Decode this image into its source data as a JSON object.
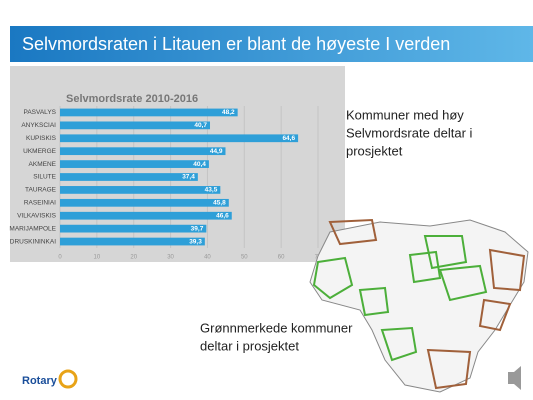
{
  "slide": {
    "title": "Selvmordsraten i Litauen er blant de høyeste I verden",
    "note_top": [
      "Kommuner med høy",
      "Selvmordsrate deltar i",
      "prosjektet"
    ],
    "note_bottom": [
      "Grønnmerkede kommuner",
      "deltar i prosjektet"
    ],
    "logo": "Rotary"
  },
  "chart_data": {
    "type": "hbar",
    "title": "Selvmordsrate 2010-2016",
    "categories": [
      "PASVALYS",
      "ANYKSCIAI",
      "KUPISKIS",
      "UKMERGE",
      "AKMENE",
      "SILUTE",
      "TAURAGE",
      "RASEINIAI",
      "VILKAVISKIS",
      "MARIJAMPOLE",
      "DRUSKININKAI"
    ],
    "values": [
      48.2,
      40.7,
      64.6,
      44.9,
      40.4,
      37.4,
      43.5,
      45.8,
      46.6,
      39.7,
      39.3
    ],
    "value_labels": [
      "48,2",
      "40,7",
      "64,6",
      "44,9",
      "40,4",
      "37,4",
      "43,5",
      "45,8",
      "46,6",
      "39,7",
      "39,3"
    ],
    "color": "#2e9fd8",
    "xlim": [
      0,
      70
    ],
    "xticks": [
      0,
      10,
      20,
      30,
      40,
      50,
      60,
      70
    ],
    "grid": true
  }
}
